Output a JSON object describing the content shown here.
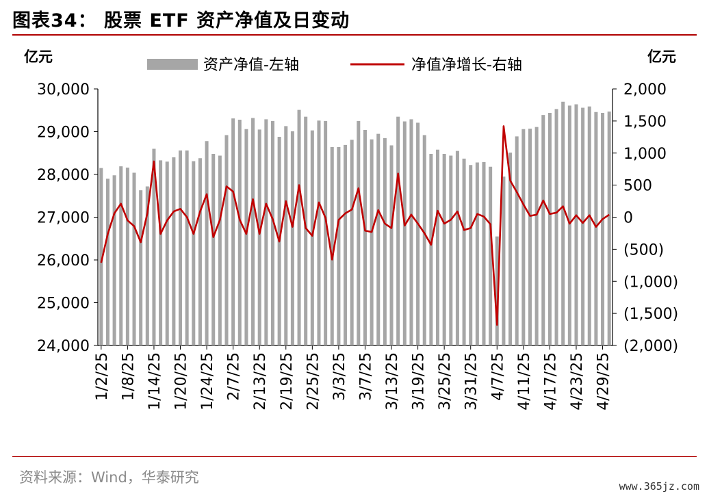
{
  "title": "图表34：  股票 ETF 资产净值及日变动",
  "source": "资料来源：Wind，华泰研究",
  "watermark": "www.365jz.com",
  "chart_data": {
    "type": "bar+line",
    "left_unit": "亿元",
    "right_unit": "亿元",
    "left_ylim": [
      24000,
      30000
    ],
    "left_ticks": [
      "24,000",
      "25,000",
      "26,000",
      "27,000",
      "28,000",
      "29,000",
      "30,000"
    ],
    "right_ylim": [
      -2000,
      2000
    ],
    "right_ticks": [
      "(2,000)",
      "(1,500)",
      "(1,000)",
      "(500)",
      "0",
      "500",
      "1,000",
      "1,500",
      "2,000"
    ],
    "x_tick_labels": [
      "1/2/25",
      "1/8/25",
      "1/14/25",
      "1/20/25",
      "1/24/25",
      "2/7/25",
      "2/13/25",
      "2/19/25",
      "2/25/25",
      "3/3/25",
      "3/7/25",
      "3/13/25",
      "3/19/25",
      "3/25/25",
      "3/31/25",
      "4/7/25",
      "4/11/25",
      "4/17/25",
      "4/23/25",
      "4/29/25"
    ],
    "series": [
      {
        "name": "资产净值-左轴",
        "kind": "bar",
        "color": "#a6a6a6",
        "values": [
          28150,
          27900,
          27980,
          28190,
          28160,
          28040,
          27630,
          27720,
          28600,
          28330,
          28300,
          28400,
          28560,
          28560,
          28310,
          28380,
          28780,
          28480,
          28440,
          28920,
          29310,
          29280,
          29060,
          29320,
          29050,
          29290,
          29250,
          28880,
          29130,
          29010,
          29510,
          29350,
          29030,
          29260,
          29250,
          28640,
          28640,
          28690,
          28810,
          29250,
          29040,
          28820,
          28950,
          28850,
          28680,
          29350,
          29240,
          29290,
          29210,
          28920,
          28480,
          28580,
          28480,
          28440,
          28550,
          28370,
          28220,
          28280,
          28290,
          28180,
          26550,
          27950,
          28510,
          28890,
          29060,
          29070,
          29110,
          29390,
          29440,
          29530,
          29700,
          29610,
          29640,
          29560,
          29590,
          29460,
          29440,
          29470
        ]
      },
      {
        "name": "净值净增长-右轴",
        "kind": "line",
        "color": "#c00000",
        "values": [
          -710,
          -260,
          60,
          210,
          -50,
          -140,
          -390,
          60,
          870,
          -260,
          -50,
          90,
          130,
          0,
          -260,
          90,
          360,
          -310,
          -40,
          480,
          400,
          -40,
          -260,
          280,
          -260,
          210,
          -30,
          -380,
          250,
          -150,
          500,
          -170,
          -290,
          230,
          -10,
          -660,
          -40,
          60,
          120,
          450,
          -210,
          -230,
          110,
          -100,
          -170,
          680,
          -130,
          40,
          -100,
          -250,
          -430,
          100,
          -100,
          -40,
          90,
          -200,
          -170,
          50,
          10,
          -110,
          -1680,
          1420,
          570,
          390,
          200,
          20,
          40,
          260,
          50,
          70,
          170,
          -100,
          30,
          -90,
          30,
          -150,
          -30,
          40
        ]
      }
    ],
    "x_label": "",
    "grid": false,
    "legend_position": "top"
  }
}
